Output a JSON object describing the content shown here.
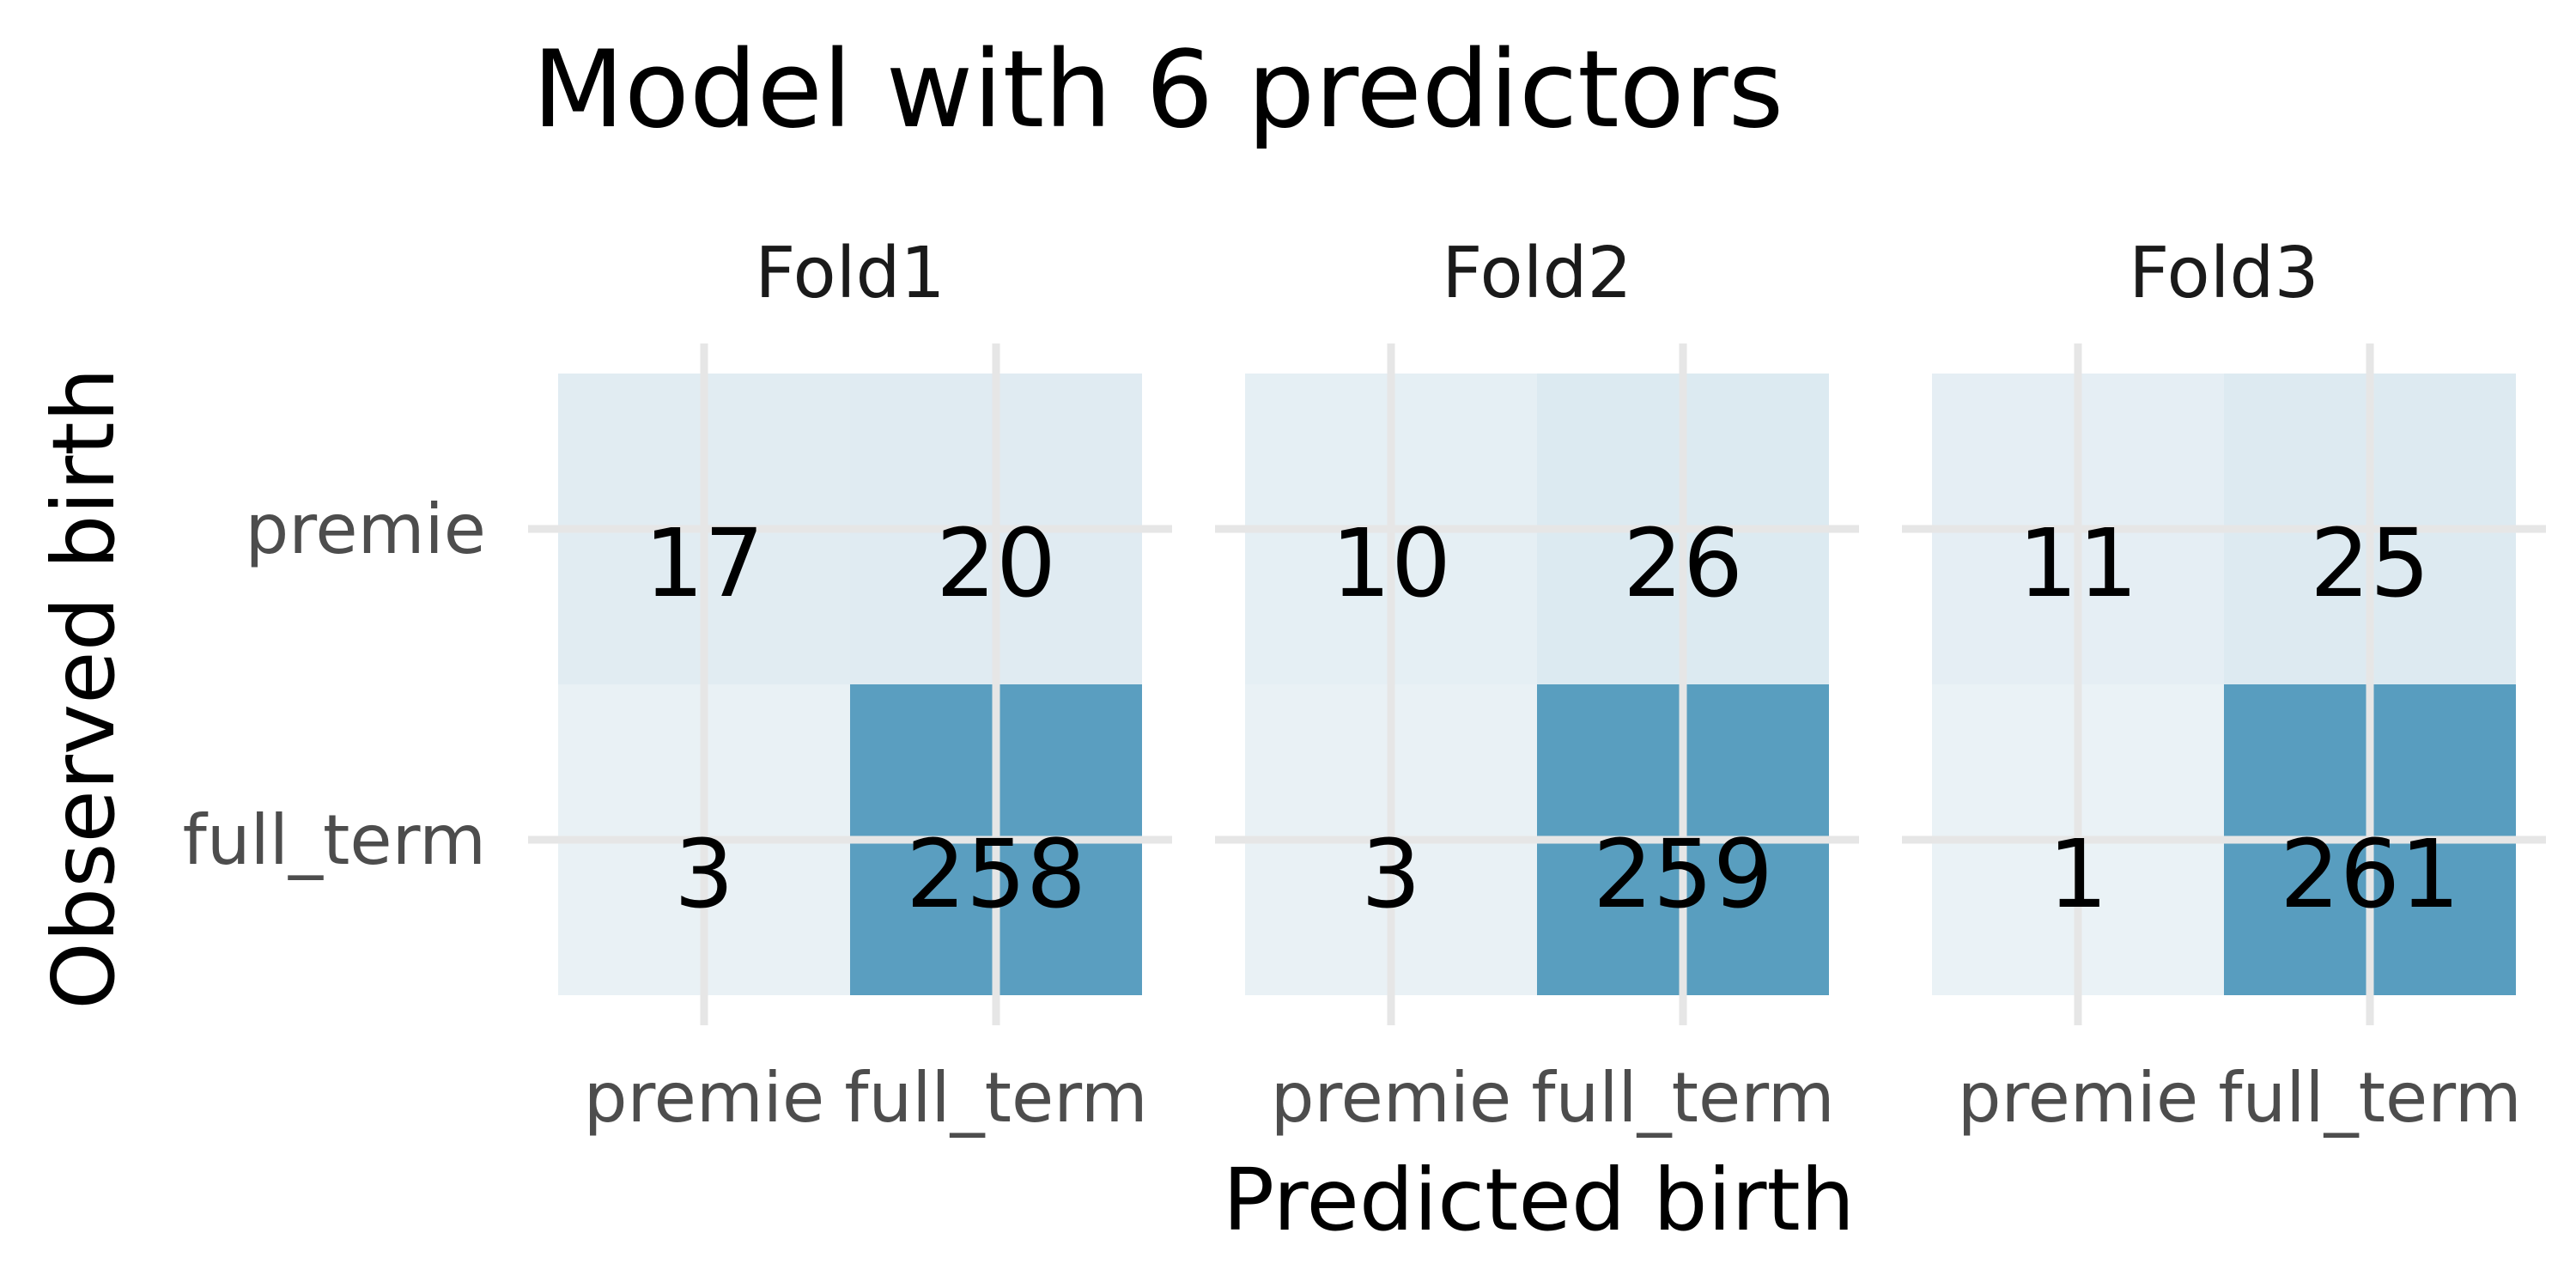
{
  "chart_data": {
    "type": "heatmap",
    "title": "Model with 6 predictors",
    "xlabel": "Predicted birth",
    "ylabel": "Observed birth",
    "x_categories": [
      "premie",
      "full_term"
    ],
    "y_categories": [
      "premie",
      "full_term"
    ],
    "value_range": [
      0,
      261
    ],
    "color_low": "#ebf2f6",
    "color_high": "#589dbf",
    "grid": true,
    "legend": "none",
    "panels": [
      {
        "name": "Fold1",
        "cells": [
          {
            "observed": "premie",
            "predicted": "premie",
            "value": 17
          },
          {
            "observed": "premie",
            "predicted": "full_term",
            "value": 20
          },
          {
            "observed": "full_term",
            "predicted": "premie",
            "value": 3
          },
          {
            "observed": "full_term",
            "predicted": "full_term",
            "value": 258
          }
        ]
      },
      {
        "name": "Fold2",
        "cells": [
          {
            "observed": "premie",
            "predicted": "premie",
            "value": 10
          },
          {
            "observed": "premie",
            "predicted": "full_term",
            "value": 26
          },
          {
            "observed": "full_term",
            "predicted": "premie",
            "value": 3
          },
          {
            "observed": "full_term",
            "predicted": "full_term",
            "value": 259
          }
        ]
      },
      {
        "name": "Fold3",
        "cells": [
          {
            "observed": "premie",
            "predicted": "premie",
            "value": 11
          },
          {
            "observed": "premie",
            "predicted": "full_term",
            "value": 25
          },
          {
            "observed": "full_term",
            "predicted": "premie",
            "value": 1
          },
          {
            "observed": "full_term",
            "predicted": "full_term",
            "value": 261
          }
        ]
      }
    ]
  }
}
